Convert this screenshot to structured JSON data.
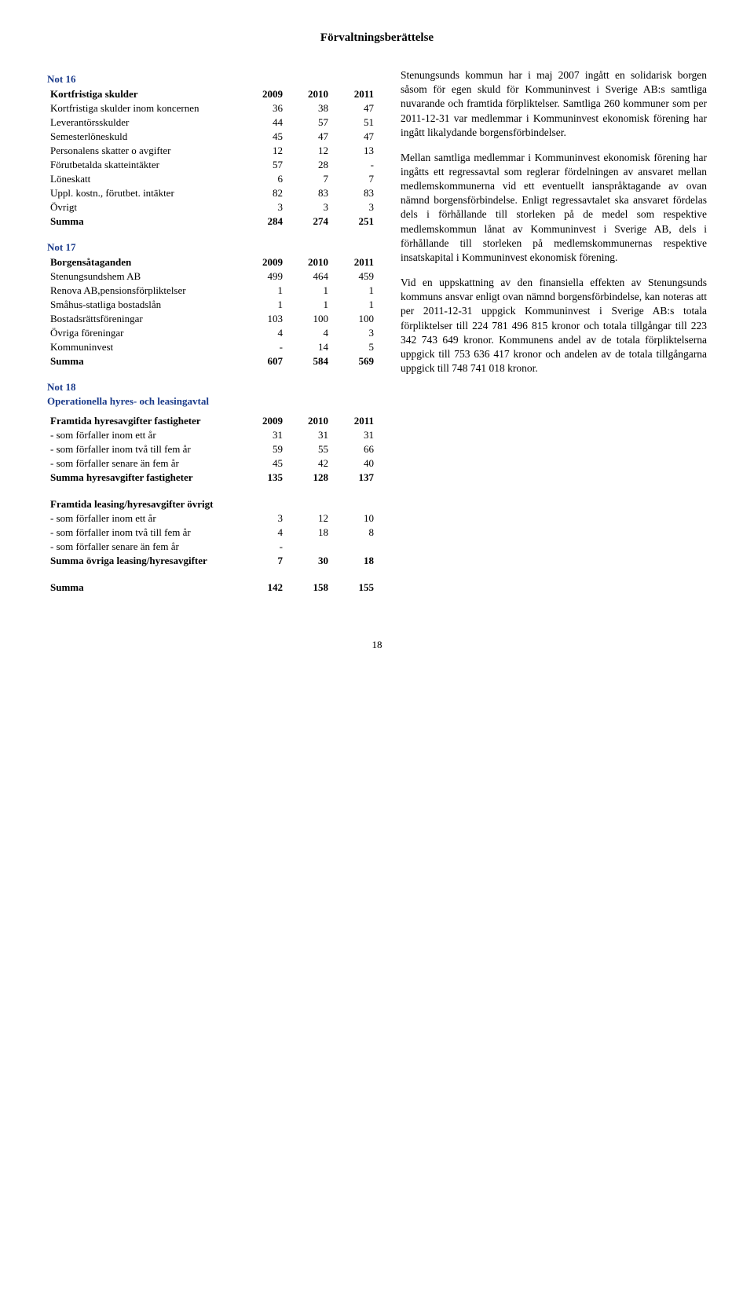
{
  "page_title": "Förvaltningsberättelse",
  "page_number": "18",
  "notes": {
    "not16": {
      "title": "Not 16",
      "header_label": "Kortfristiga skulder",
      "years": [
        "2009",
        "2010",
        "2011"
      ],
      "rows": [
        {
          "label": "Kortfristiga skulder inom koncernen",
          "v": [
            "36",
            "38",
            "47"
          ]
        },
        {
          "label": "Leverantörsskulder",
          "v": [
            "44",
            "57",
            "51"
          ]
        },
        {
          "label": "Semesterlöneskuld",
          "v": [
            "45",
            "47",
            "47"
          ]
        },
        {
          "label": "Personalens skatter o avgifter",
          "v": [
            "12",
            "12",
            "13"
          ]
        },
        {
          "label": "Förutbetalda skatteintäkter",
          "v": [
            "57",
            "28",
            "-"
          ]
        },
        {
          "label": "Löneskatt",
          "v": [
            "6",
            "7",
            "7"
          ]
        },
        {
          "label": "Uppl. kostn., förutbet. intäkter",
          "v": [
            "82",
            "83",
            "83"
          ]
        },
        {
          "label": "Övrigt",
          "v": [
            "3",
            "3",
            "3"
          ]
        }
      ],
      "sum_label": "Summa",
      "sum": [
        "284",
        "274",
        "251"
      ]
    },
    "not17": {
      "title": "Not 17",
      "header_label": "Borgensåtaganden",
      "years": [
        "2009",
        "2010",
        "2011"
      ],
      "rows": [
        {
          "label": "Stenungsundshem AB",
          "v": [
            "499",
            "464",
            "459"
          ]
        },
        {
          "label": "Renova AB,pensionsförpliktelser",
          "v": [
            "1",
            "1",
            "1"
          ]
        },
        {
          "label": "Småhus-statliga bostadslån",
          "v": [
            "1",
            "1",
            "1"
          ]
        },
        {
          "label": "Bostadsrättsföreningar",
          "v": [
            "103",
            "100",
            "100"
          ]
        },
        {
          "label": "Övriga föreningar",
          "v": [
            "4",
            "4",
            "3"
          ]
        },
        {
          "label": "Kommuninvest",
          "v": [
            "-",
            "14",
            "5"
          ]
        }
      ],
      "sum_label": "Summa",
      "sum": [
        "607",
        "584",
        "569"
      ]
    },
    "not18": {
      "title": "Not 18",
      "subtitle": "Operationella hyres- och leasingavtal",
      "section1": {
        "header_label": "Framtida hyresavgifter fastigheter",
        "years": [
          "2009",
          "2010",
          "2011"
        ],
        "rows": [
          {
            "label": " - som förfaller inom ett år",
            "v": [
              "31",
              "31",
              "31"
            ]
          },
          {
            "label": " - som förfaller inom två till fem år",
            "v": [
              "59",
              "55",
              "66"
            ]
          },
          {
            "label": " - som förfaller senare än fem år",
            "v": [
              "45",
              "42",
              "40"
            ]
          }
        ],
        "sum_label": "Summa hyresavgifter fastigheter",
        "sum": [
          "135",
          "128",
          "137"
        ]
      },
      "section2": {
        "header_label": "Framtida leasing/hyresavgifter övrigt",
        "rows": [
          {
            "label": " - som förfaller inom ett år",
            "v": [
              "3",
              "12",
              "10"
            ]
          },
          {
            "label": " - som förfaller inom två till fem år",
            "v": [
              "4",
              "18",
              "8"
            ]
          },
          {
            "label": " - som förfaller senare än fem år",
            "v": [
              "-",
              "",
              ""
            ]
          }
        ],
        "sum_label": "Summa övriga leasing/hyresavgifter",
        "sum": [
          "7",
          "30",
          "18"
        ]
      },
      "grand_sum_label": "Summa",
      "grand_sum": [
        "142",
        "158",
        "155"
      ]
    }
  },
  "right_text": {
    "p1": "Stenungsunds kommun har i maj 2007 ingått en solidarisk borgen såsom för egen skuld för Kommuninvest i Sverige AB:s samtliga nuvarande och framtida förpliktelser. Samtliga 260 kommuner som per 2011-12-31 var medlemmar i Kommuninvest ekonomisk förening har ingått likalydande borgensförbindelser.",
    "p2": "Mellan samtliga medlemmar i Kommuninvest ekonomisk förening har ingåtts ett regressavtal som reglerar fördelningen av ansvaret mellan medlemskommunerna vid ett eventuellt ianspråktagande av ovan nämnd borgensförbindelse. Enligt regressavtalet ska ansvaret fördelas dels i förhållande till storleken på de medel som respektive medlemskommun lånat av Kommuninvest i Sverige AB, dels i förhållande till storleken på medlemskommunernas respektive insatskapital i Kommuninvest ekonomisk förening.",
    "p3": "Vid en uppskattning av den finansiella effekten av Stenungsunds kommuns ansvar enligt ovan nämnd borgensförbindelse, kan noteras att per 2011-12-31 uppgick Kommuninvest i Sverige AB:s totala förpliktelser till 224 781 496 815 kronor och totala tillgångar till 223 342 743 649 kronor. Kommunens andel av de totala förpliktelserna uppgick till 753 636 417 kronor och andelen av de totala tillgångarna uppgick till 748 741 018 kronor."
  }
}
